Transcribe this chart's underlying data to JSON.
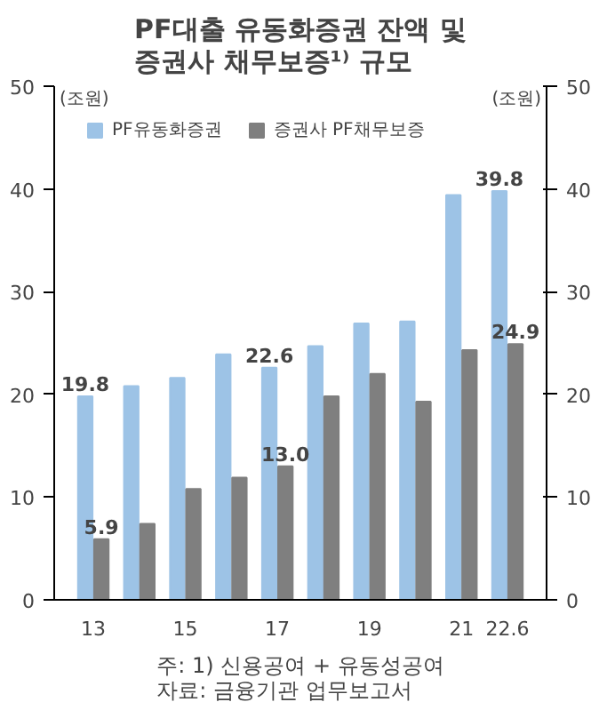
{
  "chart_data": {
    "type": "bar",
    "title": "PF대출 유동화증권 잔액 및 증권사 채무보증¹⁾ 규모",
    "categories": [
      "13",
      null,
      "15",
      null,
      "17",
      null,
      "19",
      null,
      "21",
      "22.6"
    ],
    "series": [
      {
        "name": "PF유동화증권",
        "color": "#9dc3e6",
        "values": [
          19.8,
          20.8,
          21.6,
          23.9,
          22.6,
          24.7,
          26.9,
          27.1,
          39.4,
          39.8
        ],
        "value_labels": [
          "19.8",
          null,
          null,
          null,
          "22.6",
          null,
          null,
          null,
          null,
          "39.8"
        ]
      },
      {
        "name": "증권사 PF채무보증",
        "color": "#7f7f7f",
        "values": [
          5.9,
          7.4,
          10.8,
          11.9,
          13.0,
          19.8,
          22.0,
          19.3,
          24.3,
          24.9
        ],
        "value_labels": [
          "5.9",
          null,
          null,
          null,
          "13.0",
          null,
          null,
          null,
          null,
          "24.9"
        ]
      }
    ],
    "ylabel": "(조원)",
    "y2label": "(조원)",
    "ylim": [
      0,
      50
    ],
    "yticks": [
      0,
      10,
      20,
      30,
      40,
      50
    ],
    "y2lim": [
      0,
      50
    ],
    "y2ticks": [
      0,
      10,
      20,
      30,
      40,
      50
    ],
    "grid": false,
    "legend": "top",
    "annotations": [
      "주: 1) 신용공여 + 유동성공여",
      "자료: 금융기관 업무보고서"
    ]
  }
}
